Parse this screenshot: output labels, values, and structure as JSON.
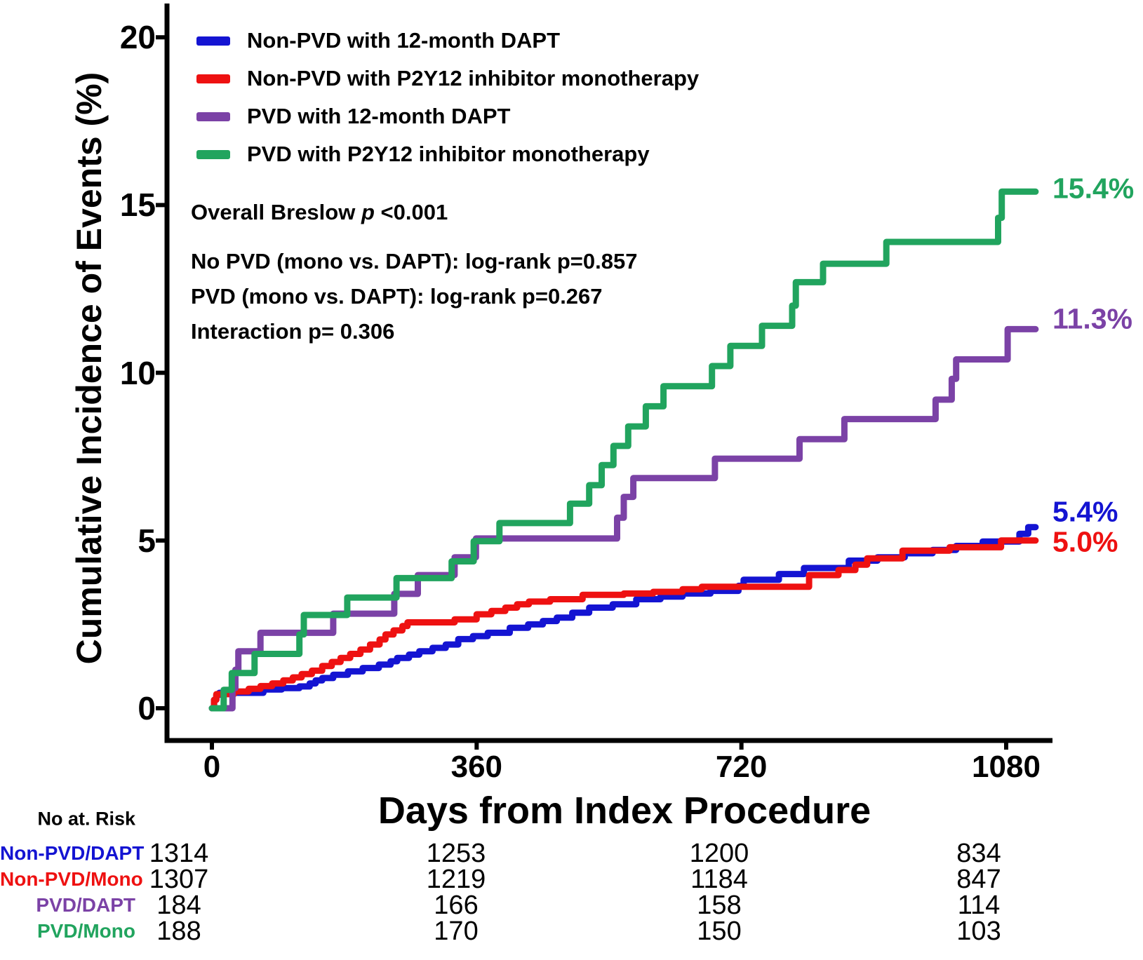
{
  "figure": {
    "background": "#ffffff",
    "accent_colors": {
      "blue": "#1414d2",
      "red": "#ee1111",
      "purple": "#7b42a6",
      "green": "#21a45e",
      "axis_black": "#000000"
    },
    "risk_table": {
      "header": "No at. Risk",
      "columns_days": [
        0,
        360,
        720,
        1080
      ],
      "rows": [
        {
          "label": "Non-PVD/DAPT",
          "color": "#1414d2",
          "values": [
            "1314",
            "1253",
            "1200",
            "834"
          ]
        },
        {
          "label": "Non-PVD/Mono",
          "color": "#ee1111",
          "values": [
            "1307",
            "1219",
            "1184",
            "847"
          ]
        },
        {
          "label": "PVD/DAPT",
          "color": "#7b42a6",
          "values": [
            "184",
            "166",
            "158",
            "114"
          ]
        },
        {
          "label": "PVD/Mono",
          "color": "#21a45e",
          "values": [
            "188",
            "170",
            "150",
            "103"
          ]
        }
      ]
    },
    "stats_lines": [
      {
        "parts": [
          {
            "text": "Overall Breslow ",
            "italic": false
          },
          {
            "text": "p",
            "italic": true
          },
          {
            "text": " <0.001",
            "italic": false
          }
        ]
      },
      {
        "parts": [
          {
            "text": "No PVD (mono vs. DAPT): log-rank p=0.857",
            "italic": false
          }
        ]
      },
      {
        "parts": [
          {
            "text": "PVD (mono vs. DAPT): log-rank p=0.267",
            "italic": false
          }
        ]
      },
      {
        "parts": [
          {
            "text": "Interaction p= 0.306",
            "italic": false
          }
        ]
      }
    ]
  },
  "chart_data": {
    "type": "line",
    "subtype": "kaplan-meier-cumulative-incidence-steps",
    "title": "",
    "xlabel": "Days from Index Procedure",
    "ylabel": "Cumulative Incidence of Events (%)",
    "xlim": [
      0,
      1120
    ],
    "ylim": [
      0,
      20
    ],
    "x_ticks": [
      "0",
      "360",
      "720",
      "1080"
    ],
    "x_tick_values": [
      0,
      360,
      720,
      1080
    ],
    "y_ticks": [
      "0",
      "5",
      "10",
      "15",
      "20"
    ],
    "y_tick_values": [
      0,
      5,
      10,
      15,
      20
    ],
    "grid": false,
    "legend_position": "top-left-inside",
    "annotations": [
      "Overall Breslow p <0.001",
      "No PVD (mono vs. DAPT): log-rank p=0.857",
      "PVD (mono vs. DAPT): log-rank p=0.267",
      "Interaction p= 0.306"
    ],
    "series": [
      {
        "name": "Non-PVD with 12-month DAPT",
        "key": "nonpvd_dapt",
        "color": "#1414d2",
        "end_label": "5.4%",
        "final_percent": 5.4,
        "points": [
          [
            0,
            0
          ],
          [
            3,
            0.25
          ],
          [
            6,
            0.4
          ],
          [
            10,
            0.46
          ],
          [
            70,
            0.56
          ],
          [
            95,
            0.6
          ],
          [
            119,
            0.65
          ],
          [
            133,
            0.74
          ],
          [
            141,
            0.83
          ],
          [
            150,
            0.9
          ],
          [
            165,
            1.0
          ],
          [
            185,
            1.1
          ],
          [
            205,
            1.2
          ],
          [
            227,
            1.3
          ],
          [
            243,
            1.4
          ],
          [
            252,
            1.5
          ],
          [
            268,
            1.6
          ],
          [
            282,
            1.7
          ],
          [
            300,
            1.8
          ],
          [
            318,
            1.9
          ],
          [
            335,
            2.06
          ],
          [
            355,
            2.15
          ],
          [
            375,
            2.25
          ],
          [
            405,
            2.4
          ],
          [
            430,
            2.5
          ],
          [
            450,
            2.6
          ],
          [
            469,
            2.7
          ],
          [
            490,
            2.85
          ],
          [
            513,
            3.0
          ],
          [
            545,
            3.1
          ],
          [
            577,
            3.25
          ],
          [
            610,
            3.33
          ],
          [
            640,
            3.42
          ],
          [
            678,
            3.5
          ],
          [
            716,
            3.65
          ],
          [
            723,
            3.83
          ],
          [
            771,
            4.0
          ],
          [
            805,
            4.18
          ],
          [
            866,
            4.4
          ],
          [
            905,
            4.5
          ],
          [
            942,
            4.62
          ],
          [
            980,
            4.72
          ],
          [
            1012,
            4.84
          ],
          [
            1048,
            4.97
          ],
          [
            1098,
            5.2
          ],
          [
            1110,
            5.4
          ],
          [
            1120,
            5.4
          ]
        ]
      },
      {
        "name": "Non-PVD with P2Y12 inhibitor monotherapy",
        "key": "nonpvd_mono",
        "color": "#ee1111",
        "end_label": "5.0%",
        "final_percent": 5.0,
        "points": [
          [
            0,
            0
          ],
          [
            3,
            0.25
          ],
          [
            6,
            0.42
          ],
          [
            30,
            0.5
          ],
          [
            50,
            0.58
          ],
          [
            66,
            0.66
          ],
          [
            82,
            0.74
          ],
          [
            97,
            0.83
          ],
          [
            110,
            0.92
          ],
          [
            122,
            1.02
          ],
          [
            136,
            1.12
          ],
          [
            150,
            1.26
          ],
          [
            163,
            1.38
          ],
          [
            175,
            1.5
          ],
          [
            188,
            1.62
          ],
          [
            202,
            1.75
          ],
          [
            215,
            1.9
          ],
          [
            228,
            2.05
          ],
          [
            236,
            2.2
          ],
          [
            247,
            2.32
          ],
          [
            259,
            2.45
          ],
          [
            266,
            2.56
          ],
          [
            330,
            2.65
          ],
          [
            360,
            2.8
          ],
          [
            380,
            2.9
          ],
          [
            399,
            3.0
          ],
          [
            415,
            3.1
          ],
          [
            431,
            3.18
          ],
          [
            460,
            3.25
          ],
          [
            504,
            3.38
          ],
          [
            560,
            3.42
          ],
          [
            600,
            3.47
          ],
          [
            640,
            3.55
          ],
          [
            666,
            3.62
          ],
          [
            812,
            3.97
          ],
          [
            852,
            4.12
          ],
          [
            875,
            4.28
          ],
          [
            891,
            4.47
          ],
          [
            939,
            4.7
          ],
          [
            1003,
            4.8
          ],
          [
            1073,
            5.0
          ],
          [
            1120,
            5.0
          ]
        ]
      },
      {
        "name": "PVD with 12-month DAPT",
        "key": "pvd_dapt",
        "color": "#7b42a6",
        "end_label": "11.3%",
        "final_percent": 11.3,
        "points": [
          [
            0,
            0
          ],
          [
            28,
            0.6
          ],
          [
            32,
            1.15
          ],
          [
            36,
            1.7
          ],
          [
            66,
            2.25
          ],
          [
            165,
            2.82
          ],
          [
            248,
            3.41
          ],
          [
            280,
            3.97
          ],
          [
            330,
            4.5
          ],
          [
            359,
            5.06
          ],
          [
            551,
            5.68
          ],
          [
            560,
            6.3
          ],
          [
            573,
            6.86
          ],
          [
            684,
            7.44
          ],
          [
            799,
            8.02
          ],
          [
            860,
            8.62
          ],
          [
            984,
            9.2
          ],
          [
            1006,
            9.82
          ],
          [
            1012,
            10.4
          ],
          [
            1082,
            11.3
          ],
          [
            1120,
            11.3
          ]
        ]
      },
      {
        "name": "PVD with P2Y12 inhibitor monotherapy",
        "key": "pvd_mono",
        "color": "#21a45e",
        "end_label": "15.4%",
        "final_percent": 15.4,
        "points": [
          [
            0,
            0
          ],
          [
            16,
            0.55
          ],
          [
            27,
            1.05
          ],
          [
            58,
            1.62
          ],
          [
            119,
            2.2
          ],
          [
            125,
            2.78
          ],
          [
            184,
            3.3
          ],
          [
            251,
            3.88
          ],
          [
            326,
            4.38
          ],
          [
            356,
            4.98
          ],
          [
            391,
            5.52
          ],
          [
            487,
            6.1
          ],
          [
            513,
            6.65
          ],
          [
            530,
            7.25
          ],
          [
            546,
            7.82
          ],
          [
            566,
            8.4
          ],
          [
            590,
            9.0
          ],
          [
            614,
            9.6
          ],
          [
            680,
            10.2
          ],
          [
            705,
            10.8
          ],
          [
            748,
            11.4
          ],
          [
            789,
            12.0
          ],
          [
            794,
            12.7
          ],
          [
            831,
            13.25
          ],
          [
            917,
            13.9
          ],
          [
            1069,
            14.62
          ],
          [
            1074,
            15.4
          ],
          [
            1120,
            15.4
          ]
        ]
      }
    ]
  }
}
